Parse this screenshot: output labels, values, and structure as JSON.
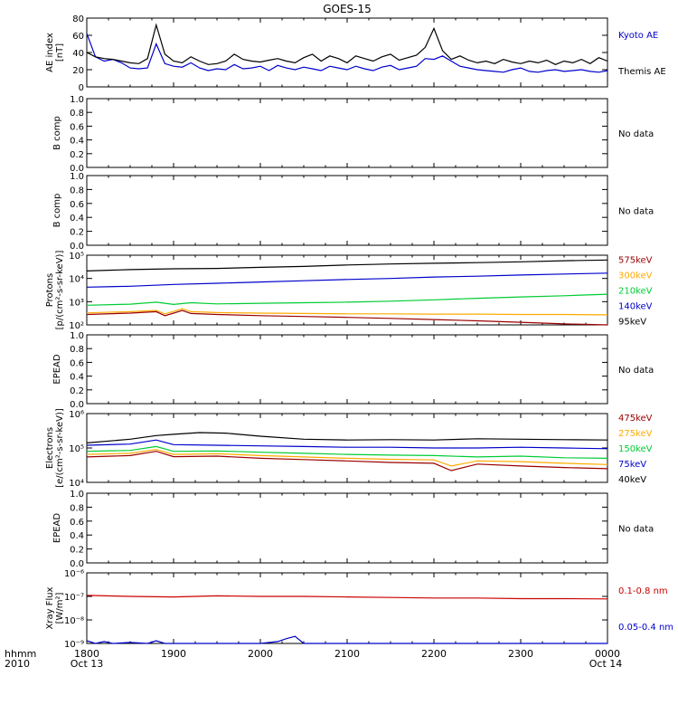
{
  "chart_data": {
    "type": "line",
    "title": "GOES-15",
    "x_axis": {
      "ticks": [
        "1800",
        "1900",
        "2000",
        "2100",
        "2200",
        "2300",
        "0000"
      ],
      "start_date": "Oct 13",
      "end_date": "Oct 14",
      "corner_label_top": "hhmm",
      "corner_label_bottom": "2010"
    },
    "panels": [
      {
        "id": "ae",
        "ylabel": "AE index\n[nT]",
        "scale": "linear",
        "ylim": [
          0,
          80
        ],
        "yticks": [
          "0",
          "20",
          "40",
          "60",
          "80"
        ],
        "legend": [
          {
            "text": "Kyoto AE",
            "color": "#0000cc"
          },
          {
            "text": "Themis AE",
            "color": "#000000"
          }
        ],
        "series": [
          {
            "name": "Kyoto AE",
            "color": "#0000cc",
            "x": [
              0,
              0.1,
              0.2,
              0.3,
              0.4,
              0.5,
              0.6,
              0.7,
              0.8,
              0.9,
              1.0,
              1.1,
              1.2,
              1.3,
              1.4,
              1.5,
              1.6,
              1.7,
              1.8,
              1.9,
              2.0,
              2.1,
              2.2,
              2.3,
              2.4,
              2.5,
              2.6,
              2.7,
              2.8,
              2.9,
              3.0,
              3.1,
              3.2,
              3.3,
              3.4,
              3.5,
              3.6,
              3.7,
              3.8,
              3.9,
              4.0,
              4.1,
              4.2,
              4.3,
              4.4,
              4.5,
              4.6,
              4.7,
              4.8,
              4.9,
              5.0,
              5.1,
              5.2,
              5.3,
              5.4,
              5.5,
              5.6,
              5.7,
              5.8,
              5.9,
              6.0
            ],
            "y": [
              62,
              35,
              30,
              32,
              28,
              22,
              21,
              22,
              50,
              27,
              24,
              23,
              28,
              22,
              19,
              21,
              20,
              26,
              21,
              22,
              24,
              19,
              25,
              22,
              20,
              23,
              21,
              19,
              24,
              22,
              20,
              24,
              21,
              19,
              23,
              25,
              20,
              22,
              24,
              33,
              32,
              36,
              30,
              24,
              22,
              20,
              19,
              18,
              17,
              20,
              22,
              18,
              17,
              19,
              20,
              18,
              19,
              20,
              18,
              17,
              19
            ]
          },
          {
            "name": "Themis AE",
            "color": "#000000",
            "x": [
              0,
              0.1,
              0.2,
              0.3,
              0.4,
              0.5,
              0.6,
              0.7,
              0.8,
              0.9,
              1.0,
              1.1,
              1.2,
              1.3,
              1.4,
              1.5,
              1.6,
              1.7,
              1.8,
              1.9,
              2.0,
              2.1,
              2.2,
              2.3,
              2.4,
              2.5,
              2.6,
              2.7,
              2.8,
              2.9,
              3.0,
              3.1,
              3.2,
              3.3,
              3.4,
              3.5,
              3.6,
              3.7,
              3.8,
              3.9,
              4.0,
              4.1,
              4.2,
              4.3,
              4.4,
              4.5,
              4.6,
              4.7,
              4.8,
              4.9,
              5.0,
              5.1,
              5.2,
              5.3,
              5.4,
              5.5,
              5.6,
              5.7,
              5.8,
              5.9,
              6.0
            ],
            "y": [
              40,
              35,
              33,
              32,
              30,
              28,
              27,
              33,
              72,
              38,
              30,
              28,
              35,
              30,
              26,
              27,
              30,
              38,
              32,
              30,
              29,
              31,
              33,
              30,
              28,
              34,
              38,
              30,
              36,
              33,
              28,
              36,
              33,
              30,
              35,
              38,
              31,
              34,
              37,
              46,
              68,
              42,
              32,
              36,
              31,
              28,
              30,
              27,
              32,
              29,
              27,
              30,
              28,
              31,
              26,
              30,
              28,
              32,
              27,
              34,
              30
            ]
          }
        ]
      },
      {
        "id": "b1",
        "ylabel": "B comp",
        "scale": "linear",
        "ylim": [
          0,
          1
        ],
        "yticks": [
          "0.0",
          "0.2",
          "0.4",
          "0.6",
          "0.8",
          "1.0"
        ],
        "legend": [
          {
            "text": "No data",
            "color": "#000000"
          }
        ],
        "series": []
      },
      {
        "id": "b2",
        "ylabel": "B comp",
        "scale": "linear",
        "ylim": [
          0,
          1
        ],
        "yticks": [
          "0.0",
          "0.2",
          "0.4",
          "0.6",
          "0.8",
          "1.0"
        ],
        "legend": [
          {
            "text": "No data",
            "color": "#000000"
          }
        ],
        "series": []
      },
      {
        "id": "protons",
        "ylabel": "Protons\n[p/(cm²-s-sr-keV)]",
        "scale": "log",
        "ylim": [
          100,
          100000
        ],
        "yticks": [
          "10²",
          "10³",
          "10⁴",
          "10⁵"
        ],
        "legend": [
          {
            "text": "575keV",
            "color": "#990000"
          },
          {
            "text": "300keV",
            "color": "#ffaa00"
          },
          {
            "text": "210keV",
            "color": "#00cc33"
          },
          {
            "text": "140keV",
            "color": "#0000cc"
          },
          {
            "text": "95keV",
            "color": "#000000"
          }
        ],
        "series": [
          {
            "name": "95keV",
            "color": "#000000",
            "x": [
              0,
              0.5,
              1.0,
              1.5,
              2.0,
              2.5,
              3.0,
              3.5,
              4.0,
              4.5,
              5.0,
              5.5,
              6.0
            ],
            "y": [
              21000,
              24000,
              26000,
              27000,
              30000,
              33000,
              38000,
              42000,
              45000,
              48000,
              52000,
              58000,
              62000
            ]
          },
          {
            "name": "140keV",
            "color": "#0000cc",
            "x": [
              0,
              0.5,
              1.0,
              1.5,
              2.0,
              2.5,
              3.0,
              3.5,
              4.0,
              4.5,
              5.0,
              5.5,
              6.0
            ],
            "y": [
              4200,
              4600,
              5500,
              6200,
              7000,
              8000,
              9000,
              10000,
              11500,
              12500,
              14000,
              15500,
              17000
            ]
          },
          {
            "name": "210keV",
            "color": "#00cc33",
            "x": [
              0,
              0.5,
              0.8,
              1.0,
              1.2,
              1.5,
              2.0,
              2.5,
              3.0,
              3.5,
              4.0,
              4.5,
              5.0,
              5.5,
              6.0
            ],
            "y": [
              700,
              780,
              950,
              760,
              900,
              800,
              850,
              900,
              950,
              1050,
              1200,
              1400,
              1600,
              1800,
              2100
            ]
          },
          {
            "name": "300keV",
            "color": "#ffaa00",
            "x": [
              0,
              0.5,
              0.8,
              0.9,
              1.0,
              1.1,
              1.2,
              1.5,
              2.0,
              2.5,
              3.0,
              3.5,
              4.0,
              4.5,
              5.0,
              5.5,
              6.0
            ],
            "y": [
              330,
              370,
              420,
              300,
              380,
              500,
              370,
              340,
              320,
              310,
              300,
              300,
              290,
              290,
              280,
              280,
              270
            ]
          },
          {
            "name": "575keV",
            "color": "#990000",
            "x": [
              0,
              0.5,
              0.8,
              0.9,
              1.0,
              1.1,
              1.2,
              1.5,
              2.0,
              2.5,
              3.0,
              3.5,
              4.0,
              4.5,
              5.0,
              5.5,
              6.0
            ],
            "y": [
              280,
              320,
              370,
              250,
              320,
              420,
              310,
              280,
              250,
              230,
              210,
              190,
              170,
              150,
              130,
              110,
              95
            ]
          }
        ]
      },
      {
        "id": "epead1",
        "ylabel": "EPEAD",
        "scale": "linear",
        "ylim": [
          0,
          1
        ],
        "yticks": [
          "0.0",
          "0.2",
          "0.4",
          "0.6",
          "0.8",
          "1.0"
        ],
        "legend": [
          {
            "text": "No data",
            "color": "#000000"
          }
        ],
        "series": []
      },
      {
        "id": "electrons",
        "ylabel": "Electrons\n[e/(cm²-s-sr-keV)]",
        "scale": "log",
        "ylim": [
          10000,
          1000000
        ],
        "yticks": [
          "10⁴",
          "10⁵",
          "10⁶"
        ],
        "legend": [
          {
            "text": "475keV",
            "color": "#990000"
          },
          {
            "text": "275keV",
            "color": "#ffaa00"
          },
          {
            "text": "150keV",
            "color": "#00cc33"
          },
          {
            "text": "75keV",
            "color": "#0000cc"
          },
          {
            "text": "40keV",
            "color": "#000000"
          }
        ],
        "series": [
          {
            "name": "40keV",
            "color": "#000000",
            "x": [
              0,
              0.5,
              0.8,
              1.0,
              1.3,
              1.6,
              2.0,
              2.5,
              3.0,
              3.5,
              4.0,
              4.5,
              5.0,
              5.5,
              6.0
            ],
            "y": [
              140000,
              180000,
              230000,
              250000,
              280000,
              270000,
              220000,
              180000,
              170000,
              175000,
              170000,
              185000,
              180000,
              175000,
              170000
            ]
          },
          {
            "name": "75keV",
            "color": "#0000cc",
            "x": [
              0,
              0.5,
              0.8,
              1.0,
              1.5,
              2.0,
              2.5,
              3.0,
              3.5,
              4.0,
              4.5,
              5.0,
              5.5,
              6.0
            ],
            "y": [
              120000,
              130000,
              170000,
              125000,
              120000,
              115000,
              110000,
              105000,
              105000,
              100000,
              100000,
              105000,
              100000,
              95000
            ]
          },
          {
            "name": "150keV",
            "color": "#00cc33",
            "x": [
              0,
              0.5,
              0.8,
              1.0,
              1.5,
              2.0,
              2.5,
              3.0,
              3.5,
              4.0,
              4.5,
              5.0,
              5.5,
              6.0
            ],
            "y": [
              80000,
              85000,
              110000,
              80000,
              82000,
              75000,
              70000,
              65000,
              62000,
              60000,
              55000,
              58000,
              52000,
              50000
            ]
          },
          {
            "name": "275keV",
            "color": "#ffaa00",
            "x": [
              0,
              0.5,
              0.8,
              1.0,
              1.5,
              2.0,
              2.5,
              3.0,
              3.5,
              4.0,
              4.2,
              4.5,
              5.0,
              5.5,
              6.0
            ],
            "y": [
              65000,
              70000,
              90000,
              65000,
              68000,
              60000,
              55000,
              50000,
              47000,
              45000,
              30000,
              42000,
              40000,
              36000,
              33000
            ]
          },
          {
            "name": "475keV",
            "color": "#990000",
            "x": [
              0,
              0.5,
              0.8,
              1.0,
              1.5,
              2.0,
              2.5,
              3.0,
              3.5,
              4.0,
              4.2,
              4.5,
              5.0,
              5.5,
              6.0
            ],
            "y": [
              55000,
              60000,
              80000,
              56000,
              58000,
              50000,
              46000,
              42000,
              38000,
              36000,
              22000,
              34000,
              30000,
              27000,
              25000
            ]
          }
        ]
      },
      {
        "id": "epead2",
        "ylabel": "EPEAD",
        "scale": "linear",
        "ylim": [
          0,
          1
        ],
        "yticks": [
          "0.0",
          "0.2",
          "0.4",
          "0.6",
          "0.8",
          "1.0"
        ],
        "legend": [
          {
            "text": "No data",
            "color": "#000000"
          }
        ],
        "series": []
      },
      {
        "id": "xray",
        "ylabel": "Xray Flux\n[W/m²]",
        "scale": "log",
        "ylim": [
          1e-09,
          1e-06
        ],
        "yticks": [
          "10⁻⁹",
          "10⁻⁸",
          "10⁻⁷",
          "10⁻⁶"
        ],
        "legend": [
          {
            "text": "0.1-0.8 nm",
            "color": "#cc0000"
          },
          {
            "text": "0.05-0.4 nm",
            "color": "#0000cc"
          }
        ],
        "series": [
          {
            "name": "0.1-0.8 nm",
            "color": "#cc0000",
            "x": [
              0,
              0.5,
              1.0,
              1.5,
              2.0,
              2.5,
              3.0,
              3.5,
              4.0,
              4.5,
              5.0,
              5.5,
              6.0
            ],
            "y": [
              1.1e-07,
              1e-07,
              9.5e-08,
              1.05e-07,
              1e-07,
              1e-07,
              9.5e-08,
              9e-08,
              8.5e-08,
              8.5e-08,
              8e-08,
              8e-08,
              7.8e-08
            ]
          },
          {
            "name": "0.05-0.4 nm",
            "color": "#0000cc",
            "x": [
              0,
              0.1,
              0.2,
              0.3,
              0.5,
              0.7,
              0.8,
              0.9,
              1.0,
              2.0,
              2.2,
              2.3,
              2.4,
              2.5,
              3.0,
              4.0,
              5.0,
              6.0
            ],
            "y": [
              1.3e-09,
              1e-09,
              1.2e-09,
              1e-09,
              1.1e-09,
              1e-09,
              1.3e-09,
              1e-09,
              1e-09,
              1e-09,
              1.2e-09,
              1.6e-09,
              2e-09,
              1e-09,
              1e-09,
              1e-09,
              1e-09,
              1e-09
            ]
          }
        ]
      }
    ]
  }
}
